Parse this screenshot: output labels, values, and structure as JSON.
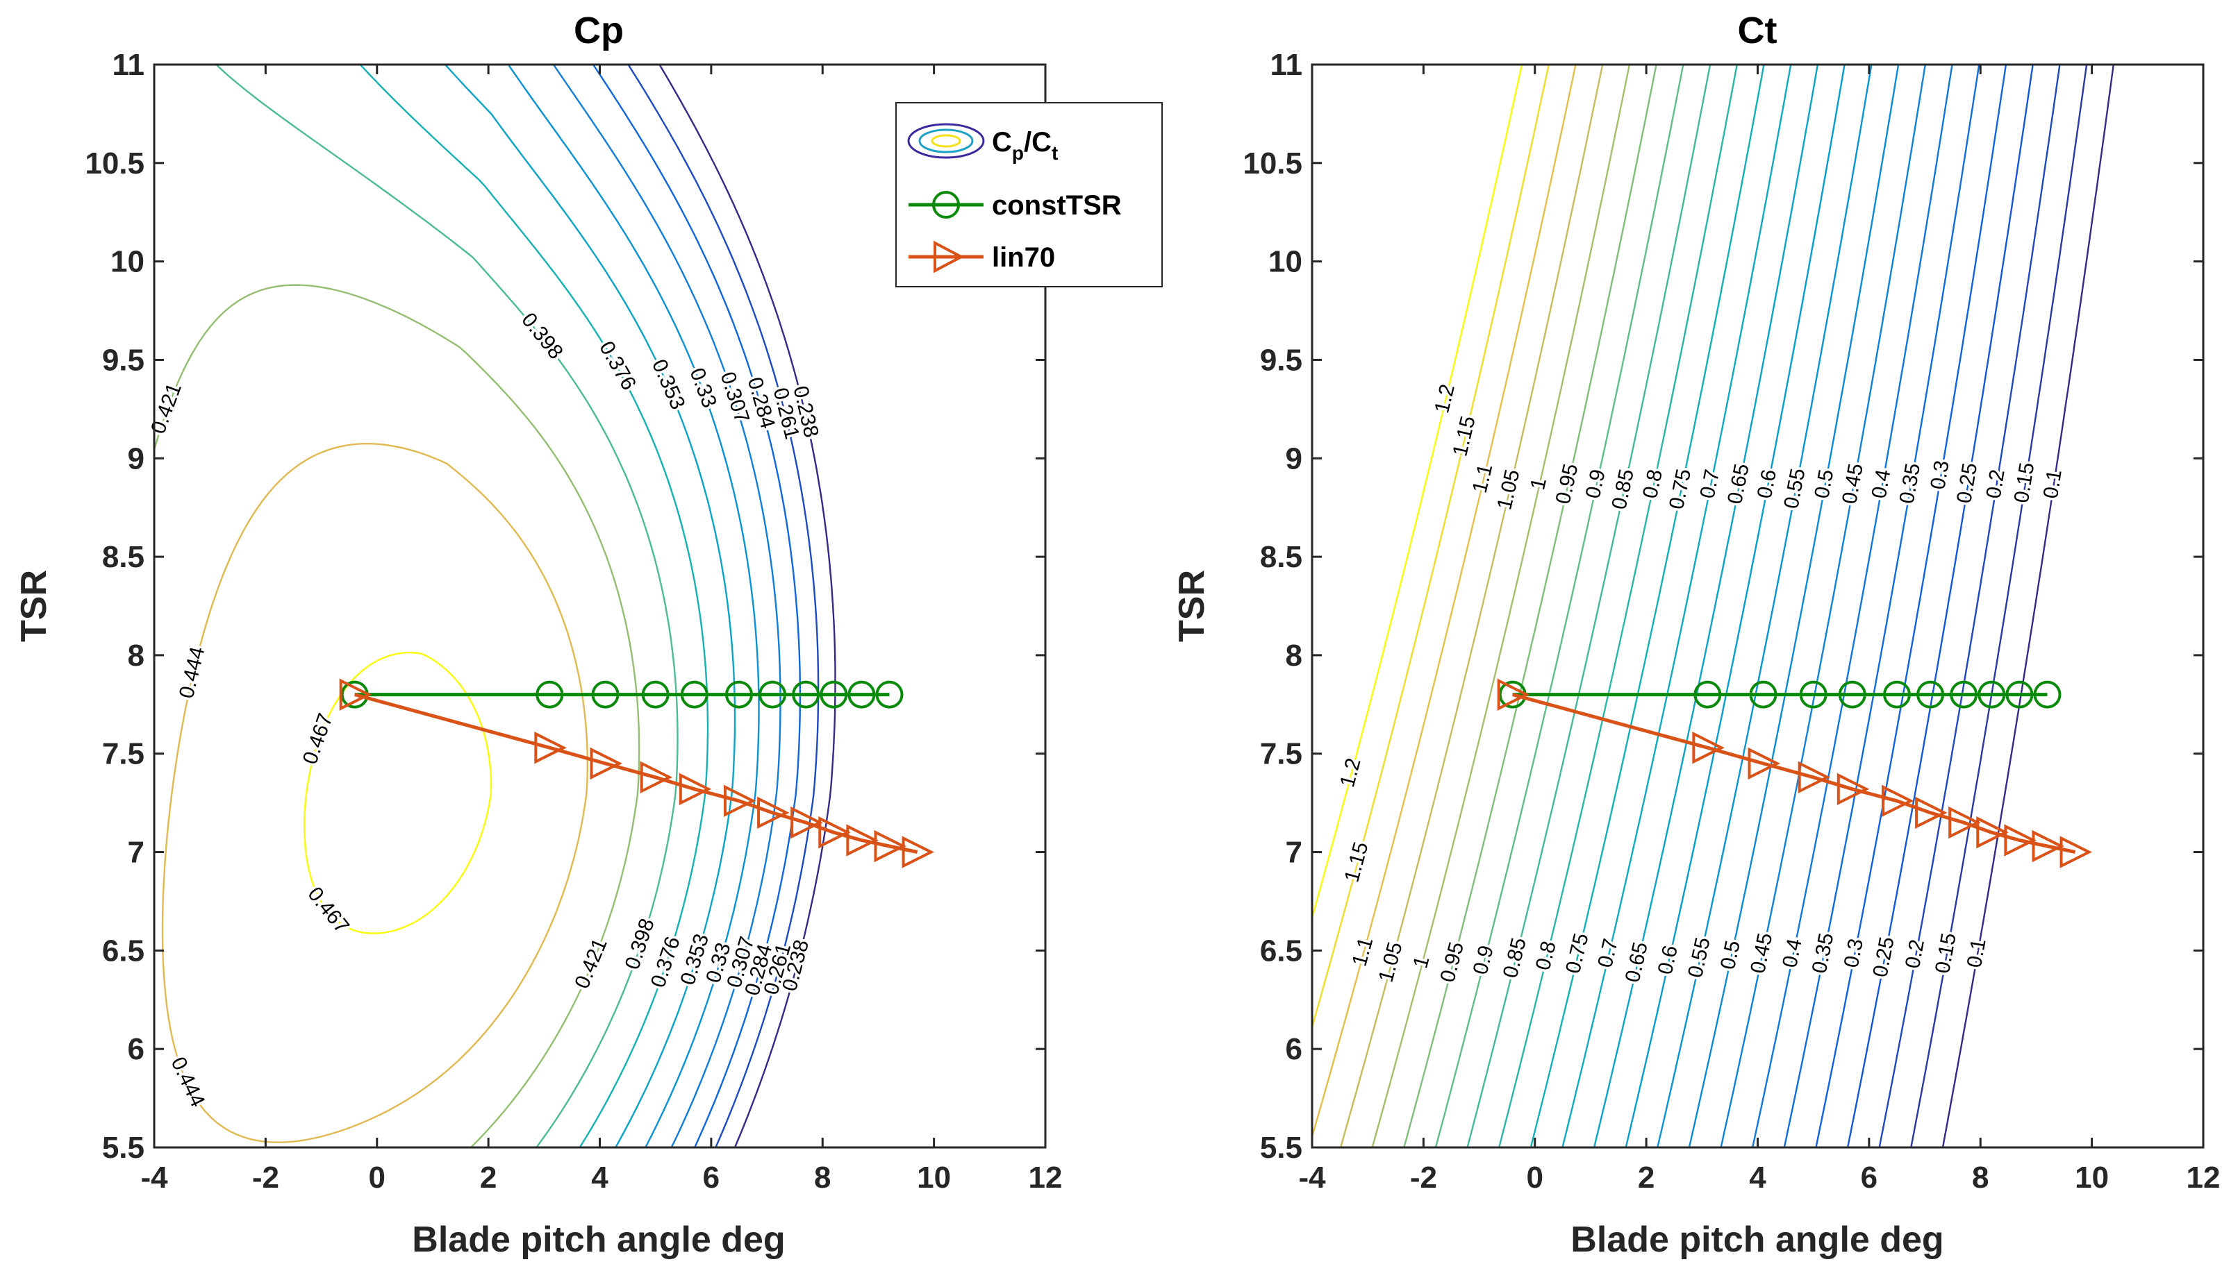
{
  "chart_data": [
    {
      "type": "contour",
      "title": "Cp",
      "xlabel": "Blade pitch angle deg",
      "ylabel": "TSR",
      "xlim": [
        -4,
        12
      ],
      "ylim": [
        5.5,
        11
      ],
      "xticks": [
        "-4",
        "-2",
        "0",
        "2",
        "4",
        "6",
        "8",
        "10",
        "12"
      ],
      "yticks": [
        "5.5",
        "6",
        "6.5",
        "7",
        "7.5",
        "8",
        "8.5",
        "9",
        "9.5",
        "10",
        "10.5",
        "11"
      ],
      "contour_levels": [
        "0.238",
        "0.261",
        "0.284",
        "0.307",
        "0.33",
        "0.353",
        "0.376",
        "0.398",
        "0.421",
        "0.444",
        "0.467"
      ],
      "series": [
        {
          "name": "constTSR",
          "color": "#0a8a0a",
          "marker": "circle",
          "x": [
            -0.4,
            3.1,
            4.1,
            5.0,
            5.7,
            6.5,
            7.1,
            7.7,
            8.2,
            8.7,
            9.2
          ],
          "y": [
            7.8,
            7.8,
            7.8,
            7.8,
            7.8,
            7.8,
            7.8,
            7.8,
            7.8,
            7.8,
            7.8
          ]
        },
        {
          "name": "lin70",
          "color": "#d95319",
          "marker": "triangle-right",
          "x": [
            -0.4,
            3.1,
            4.1,
            5.0,
            5.7,
            6.5,
            7.1,
            7.7,
            8.2,
            8.7,
            9.2,
            9.7
          ],
          "y": [
            7.8,
            7.53,
            7.45,
            7.38,
            7.32,
            7.26,
            7.2,
            7.15,
            7.1,
            7.06,
            7.03,
            7.0
          ]
        }
      ]
    },
    {
      "type": "contour",
      "title": "Ct",
      "xlabel": "Blade pitch angle deg",
      "ylabel": "TSR",
      "xlim": [
        -4,
        12
      ],
      "ylim": [
        5.5,
        11
      ],
      "xticks": [
        "-4",
        "-2",
        "0",
        "2",
        "4",
        "6",
        "8",
        "10",
        "12"
      ],
      "yticks": [
        "5.5",
        "6",
        "6.5",
        "7",
        "7.5",
        "8",
        "8.5",
        "9",
        "9.5",
        "10",
        "10.5",
        "11"
      ],
      "contour_levels": [
        "0.1",
        "0.15",
        "0.2",
        "0.25",
        "0.3",
        "0.35",
        "0.4",
        "0.45",
        "0.5",
        "0.55",
        "0.6",
        "0.65",
        "0.7",
        "0.75",
        "0.8",
        "0.85",
        "0.9",
        "0.95",
        "1",
        "1.05",
        "1.1",
        "1.15",
        "1.2"
      ],
      "series": [
        {
          "name": "constTSR",
          "color": "#0a8a0a",
          "marker": "circle",
          "x": [
            -0.4,
            3.1,
            4.1,
            5.0,
            5.7,
            6.5,
            7.1,
            7.7,
            8.2,
            8.7,
            9.2
          ],
          "y": [
            7.8,
            7.8,
            7.8,
            7.8,
            7.8,
            7.8,
            7.8,
            7.8,
            7.8,
            7.8,
            7.8
          ]
        },
        {
          "name": "lin70",
          "color": "#d95319",
          "marker": "triangle-right",
          "x": [
            -0.4,
            3.1,
            4.1,
            5.0,
            5.7,
            6.5,
            7.1,
            7.7,
            8.2,
            8.7,
            9.2,
            9.7
          ],
          "y": [
            7.8,
            7.53,
            7.45,
            7.38,
            7.32,
            7.26,
            7.2,
            7.15,
            7.1,
            7.06,
            7.03,
            7.0
          ]
        }
      ]
    }
  ],
  "legend": {
    "placement": "top-right of Cp panel",
    "entries": [
      {
        "label": "C",
        "sub1": "p",
        "mid": "/C",
        "sub2": "t",
        "kind": "contour"
      },
      {
        "label": "constTSR",
        "kind": "circle"
      },
      {
        "label": "lin70",
        "kind": "triangle-right"
      }
    ]
  },
  "colors": {
    "axis": "#262626",
    "constTSR": "#0a8a0a",
    "lin70": "#d95319"
  }
}
